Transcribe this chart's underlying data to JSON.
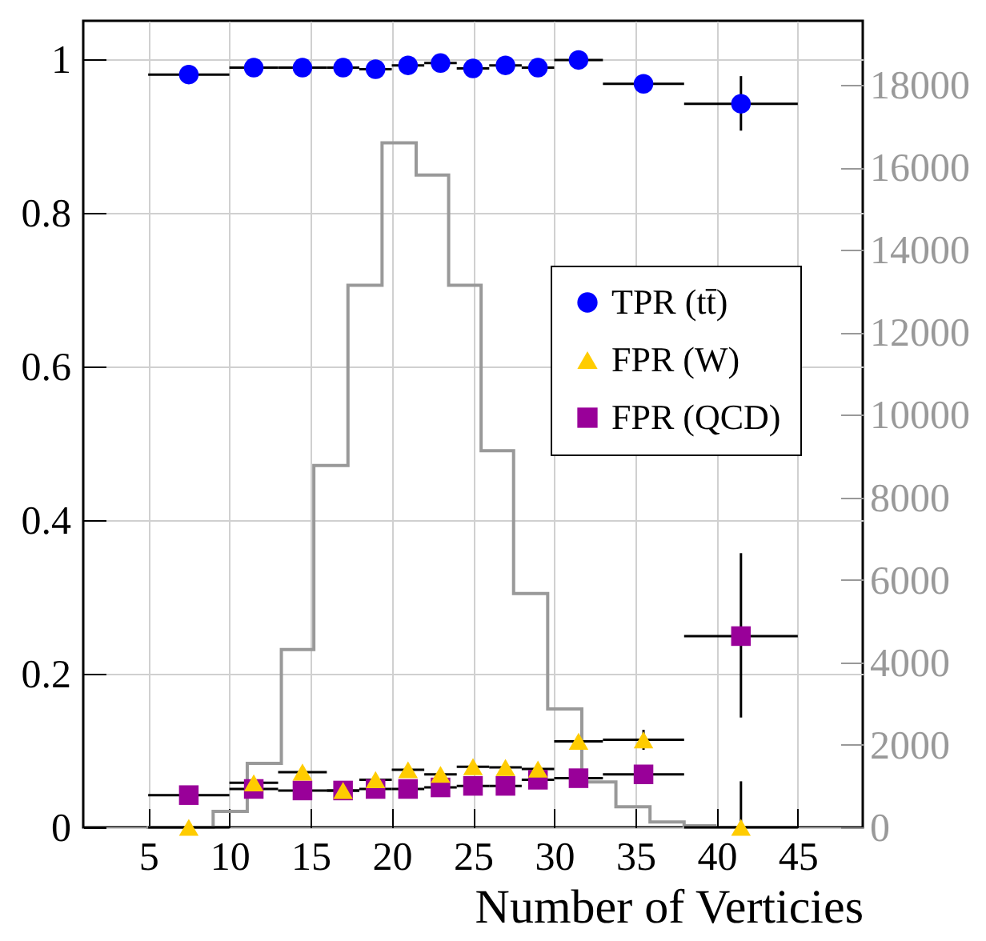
{
  "chart_data": {
    "type": "scatter",
    "xlabel": "Number of Verticies",
    "x": [
      7.5,
      11.5,
      14.5,
      17,
      19,
      21,
      23,
      25,
      27,
      29,
      31.5,
      35.5,
      41.5
    ],
    "series": [
      {
        "name": "TPR (tt̄)",
        "color": "#0000ff",
        "marker": "circle",
        "values": [
          0.98,
          0.989,
          0.989,
          0.989,
          0.987,
          0.992,
          0.995,
          0.988,
          0.992,
          0.989,
          0.999,
          0.968,
          0.942
        ],
        "errors": [
          null,
          null,
          null,
          null,
          null,
          null,
          null,
          null,
          null,
          null,
          null,
          null,
          [
            0.907,
            0.978
          ]
        ],
        "xerrors": [
          2.5,
          1.5,
          1.5,
          1,
          1,
          1,
          1,
          1,
          1,
          1,
          1.5,
          2.5,
          3.5
        ]
      },
      {
        "name": "FPR (W)",
        "color": "#ffcc00",
        "marker": "triangle",
        "values": [
          0,
          0.058,
          0.072,
          0.048,
          0.062,
          0.075,
          0.069,
          0.079,
          0.078,
          0.076,
          0.112,
          0.114,
          0
        ],
        "errors": [
          null,
          null,
          null,
          null,
          null,
          null,
          null,
          null,
          null,
          null,
          null,
          0.013,
          [
            0,
            0.06
          ]
        ],
        "xerrors": [
          2.5,
          1.5,
          1.5,
          1,
          1,
          1,
          1,
          1,
          1,
          1,
          1.5,
          2.5,
          3.5
        ]
      },
      {
        "name": "FPR (QCD)",
        "color": "#990099",
        "marker": "square",
        "values": [
          0.042,
          0.05,
          0.048,
          0.048,
          0.05,
          0.05,
          0.052,
          0.054,
          0.054,
          0.062,
          0.064,
          0.069,
          0.249
        ],
        "errors": [
          null,
          null,
          null,
          null,
          null,
          null,
          null,
          null,
          null,
          null,
          null,
          null,
          [
            0.143,
            0.357
          ]
        ],
        "xerrors": [
          2.5,
          1.5,
          1.5,
          1,
          1,
          1,
          1,
          1,
          1,
          1,
          1.5,
          2.5,
          3.5
        ]
      },
      {
        "type": "histogram",
        "axis": "y2",
        "color": "#999999",
        "bins": [
          4.9,
          7.0,
          9.0,
          11.1,
          13.2,
          15.2,
          17.3,
          19.4,
          21.5,
          23.5,
          25.5,
          27.5,
          29.6,
          31.7,
          33.8,
          35.9,
          38.0,
          40.0
        ],
        "values": [
          0,
          0,
          390,
          1550,
          4310,
          8770,
          13140,
          16590,
          15810,
          13140,
          9130,
          5670,
          2870,
          1100,
          500,
          130,
          40
        ]
      }
    ],
    "xlim": [
      1,
      49
    ],
    "xticks": [
      5,
      10,
      15,
      20,
      25,
      30,
      35,
      40,
      45
    ],
    "ylim": [
      0,
      1.05
    ],
    "yticks": [
      0,
      0.2,
      0.4,
      0.6,
      0.8,
      1
    ],
    "y2lim": [
      0,
      19550
    ],
    "y2ticks": [
      0,
      2000,
      4000,
      6000,
      8000,
      10000,
      12000,
      14000,
      16000,
      18000
    ],
    "grid": true,
    "legend": "right"
  }
}
